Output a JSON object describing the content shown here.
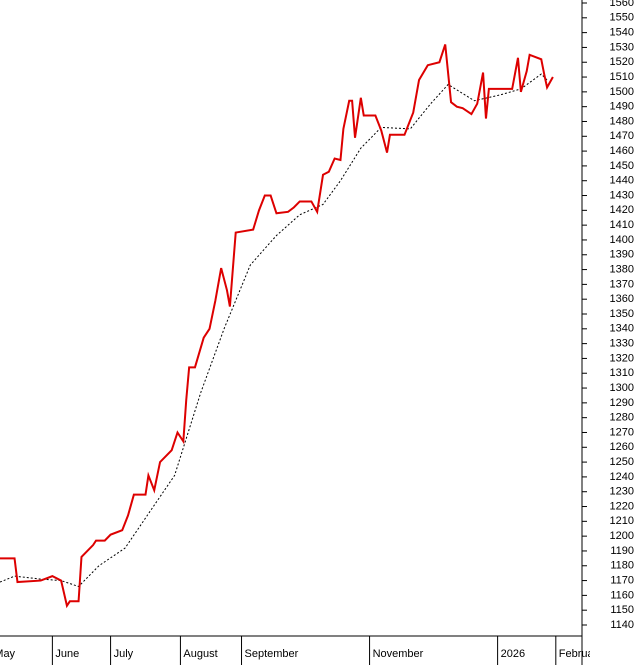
{
  "chart_data": {
    "type": "line",
    "xlim": [
      0,
      200
    ],
    "xticks": [
      {
        "value": -3,
        "label": "May"
      },
      {
        "value": 18,
        "label": "June"
      },
      {
        "value": 38,
        "label": "July"
      },
      {
        "value": 62,
        "label": "August"
      },
      {
        "value": 83,
        "label": "September"
      },
      {
        "value": 127,
        "label": "November"
      },
      {
        "value": 171,
        "label": "2026"
      },
      {
        "value": 191,
        "label": "February"
      }
    ],
    "ylim": [
      1140,
      1560
    ],
    "yticks": [
      1140,
      1150,
      1160,
      1170,
      1180,
      1190,
      1200,
      1210,
      1220,
      1230,
      1240,
      1250,
      1260,
      1270,
      1280,
      1290,
      1300,
      1310,
      1320,
      1330,
      1340,
      1350,
      1360,
      1370,
      1380,
      1390,
      1400,
      1410,
      1420,
      1430,
      1440,
      1450,
      1460,
      1470,
      1480,
      1490,
      1500,
      1510,
      1520,
      1530,
      1540,
      1550,
      1560
    ],
    "series": [
      {
        "color": "#dd0000",
        "style": "solid",
        "x": [
          0,
          5,
          6,
          14,
          18,
          21,
          23,
          24,
          27,
          28,
          32,
          33,
          36,
          38,
          42,
          44,
          46,
          50,
          51,
          53,
          55,
          59,
          61,
          63,
          64,
          65,
          67,
          70,
          72,
          74,
          76,
          78,
          79,
          81,
          87,
          89,
          91,
          93,
          95,
          99,
          101,
          103,
          107,
          109,
          111,
          113,
          115,
          117,
          118,
          120,
          121,
          122,
          124,
          125,
          129,
          131,
          133,
          134,
          139,
          142,
          144,
          147,
          151,
          153,
          155,
          157,
          159,
          162,
          164,
          166,
          167,
          168,
          176,
          178,
          179,
          181,
          182,
          186,
          187,
          188,
          190
        ],
        "values": [
          1185,
          1185,
          1169,
          1170,
          1173,
          1170,
          1153,
          1156,
          1156,
          1186,
          1194,
          1197,
          1197,
          1201,
          1204,
          1214,
          1228,
          1228,
          1241,
          1231,
          1250,
          1258,
          1270,
          1264,
          1292,
          1314,
          1314,
          1334,
          1340,
          1359,
          1381,
          1366,
          1355,
          1405,
          1407,
          1420,
          1430,
          1430,
          1418,
          1419,
          1422,
          1426,
          1426,
          1419,
          1444,
          1446,
          1455,
          1454,
          1475,
          1494,
          1494,
          1469,
          1496,
          1484,
          1484,
          1474,
          1459,
          1471,
          1471,
          1486,
          1508,
          1518,
          1520,
          1532,
          1493,
          1490,
          1489,
          1485,
          1492,
          1513,
          1482,
          1502,
          1502,
          1523,
          1500,
          1514,
          1525,
          1522,
          1512,
          1503,
          1510
        ]
      },
      {
        "color": "#000000",
        "style": "dashed",
        "x": [
          0,
          5,
          14,
          21,
          27,
          34,
          43,
          52,
          60,
          69,
          77,
          86,
          95,
          103,
          111,
          117,
          124,
          131,
          141,
          148,
          154,
          163,
          172,
          179,
          186,
          188
        ],
        "values": [
          1169,
          1173,
          1171,
          1170,
          1166,
          1180,
          1192,
          1218,
          1241,
          1297,
          1340,
          1383,
          1403,
          1417,
          1424,
          1440,
          1462,
          1476,
          1475,
          1492,
          1505,
          1494,
          1498,
          1502,
          1512,
          1508
        ]
      }
    ]
  }
}
